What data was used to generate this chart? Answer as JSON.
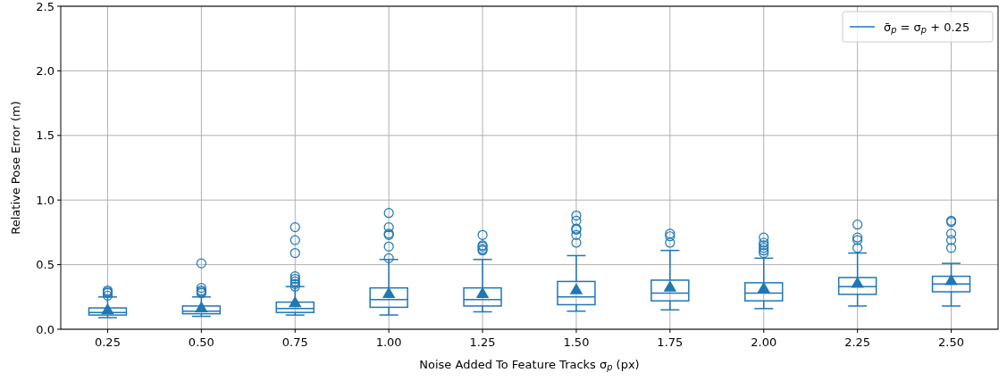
{
  "chart_data": {
    "type": "box",
    "xlabel": "Noise Added To Feature Tracks σ$_{p}$ (px)",
    "ylabel": "Relative Pose Error (m)",
    "categories": [
      "0.25",
      "0.50",
      "0.75",
      "1.00",
      "1.25",
      "1.50",
      "1.75",
      "2.00",
      "2.25",
      "2.50"
    ],
    "ylim": [
      0,
      2.5
    ],
    "yticks": [
      {
        "value": 0,
        "label": "0.0"
      },
      {
        "value": 0.5,
        "label": "0.5"
      },
      {
        "value": 1,
        "label": "1.0"
      },
      {
        "value": 1.5,
        "label": "1.5"
      },
      {
        "value": 2,
        "label": "2.0"
      },
      {
        "value": 2.5,
        "label": "2.5"
      }
    ],
    "grid": true,
    "legend": "top right",
    "marker": "triangle",
    "series": [
      {
        "name": "σ̄$_{p}$ = σ$_{p}$ + 0.25",
        "color": "#1f77b4",
        "boxes": [
          {
            "low": 0.09,
            "q1": 0.11,
            "median": 0.13,
            "q3": 0.165,
            "high": 0.25,
            "mean": 0.145,
            "outliers": [
              0.26,
              0.28,
              0.29,
              0.3
            ]
          },
          {
            "low": 0.1,
            "q1": 0.12,
            "median": 0.14,
            "q3": 0.18,
            "high": 0.25,
            "mean": 0.16,
            "outliers": [
              0.28,
              0.29,
              0.3,
              0.32,
              0.51
            ]
          },
          {
            "low": 0.11,
            "q1": 0.13,
            "median": 0.16,
            "q3": 0.21,
            "high": 0.33,
            "mean": 0.2,
            "outliers": [
              0.33,
              0.35,
              0.37,
              0.39,
              0.41,
              0.59,
              0.69,
              0.79
            ]
          },
          {
            "low": 0.11,
            "q1": 0.17,
            "median": 0.23,
            "q3": 0.32,
            "high": 0.54,
            "mean": 0.27,
            "outliers": [
              0.55,
              0.64,
              0.73,
              0.74,
              0.79,
              0.9
            ]
          },
          {
            "low": 0.135,
            "q1": 0.18,
            "median": 0.23,
            "q3": 0.32,
            "high": 0.54,
            "mean": 0.27,
            "outliers": [
              0.61,
              0.62,
              0.64,
              0.65,
              0.73
            ]
          },
          {
            "low": 0.14,
            "q1": 0.19,
            "median": 0.25,
            "q3": 0.37,
            "high": 0.57,
            "mean": 0.3,
            "outliers": [
              0.67,
              0.73,
              0.77,
              0.78,
              0.84,
              0.88
            ]
          },
          {
            "low": 0.15,
            "q1": 0.22,
            "median": 0.28,
            "q3": 0.38,
            "high": 0.61,
            "mean": 0.32,
            "outliers": [
              0.67,
              0.72,
              0.74
            ]
          },
          {
            "low": 0.16,
            "q1": 0.22,
            "median": 0.28,
            "q3": 0.36,
            "high": 0.55,
            "mean": 0.31,
            "outliers": [
              0.59,
              0.61,
              0.63,
              0.65,
              0.67,
              0.71
            ]
          },
          {
            "low": 0.18,
            "q1": 0.27,
            "median": 0.33,
            "q3": 0.4,
            "high": 0.59,
            "mean": 0.35,
            "outliers": [
              0.63,
              0.69,
              0.71,
              0.81
            ]
          },
          {
            "low": 0.18,
            "q1": 0.29,
            "median": 0.35,
            "q3": 0.41,
            "high": 0.51,
            "mean": 0.37,
            "outliers": [
              0.63,
              0.69,
              0.74,
              0.83,
              0.84
            ]
          }
        ]
      }
    ]
  }
}
